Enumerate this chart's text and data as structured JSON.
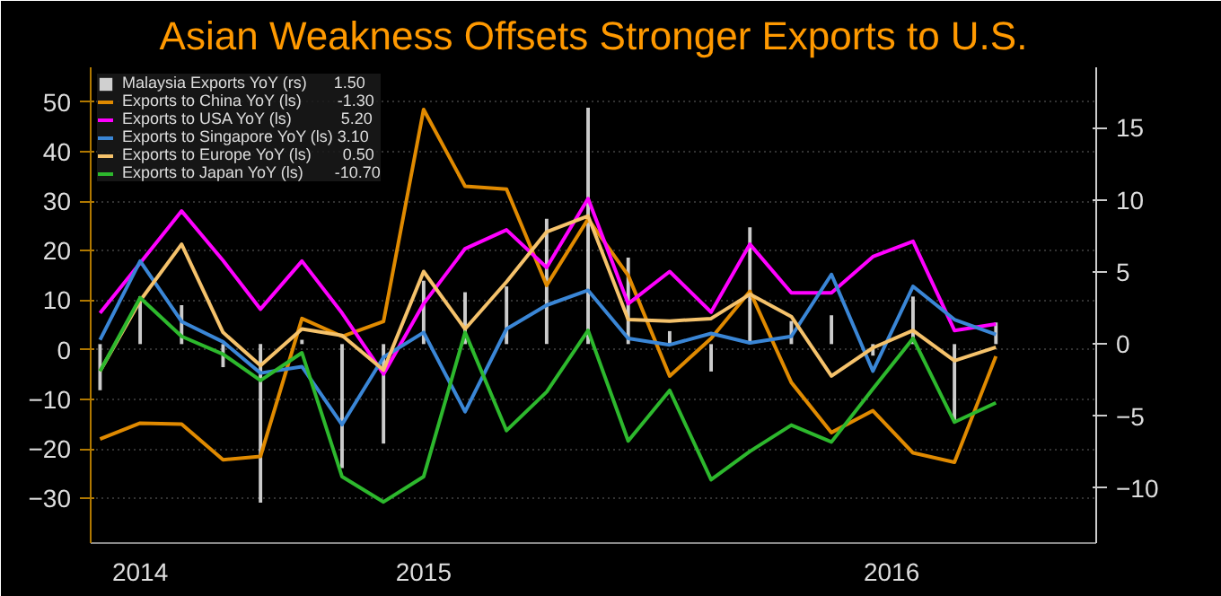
{
  "chart_data": {
    "type": "line",
    "title": "Asian Weakness Offsets Stronger Exports to U.S.",
    "x": [
      "2014-11",
      "2014-12",
      "2015-01",
      "2015-02",
      "2015-03",
      "2015-04",
      "2015-05",
      "2015-06",
      "2015-07",
      "2015-08",
      "2015-09",
      "2015-10",
      "2015-11",
      "2015-12",
      "2016-01",
      "2016-02",
      "2016-03",
      "2016-04",
      "2016-05",
      "2016-06",
      "2016-07",
      "2016-08",
      "2016-09"
    ],
    "series": [
      {
        "name": "Malaysia Exports YoY (rs)      1.50",
        "type": "bar",
        "axis": "y2",
        "color": "#ffffff",
        "values": [
          -3.2,
          3.3,
          2.7,
          -1.6,
          -11.0,
          0.3,
          -8.6,
          -6.9,
          4.4,
          3.6,
          4.0,
          8.7,
          16.4,
          6.0,
          0.9,
          -1.9,
          8.1,
          1.6,
          2.0,
          -0.8,
          3.3,
          -5.4,
          1.5
        ]
      },
      {
        "name": "Exports to China YoY (ls)        -1.30",
        "color": "#e08a00",
        "values": [
          -18,
          -14.8,
          -15,
          -22.2,
          -21.5,
          6.3,
          2.7,
          5.7,
          48.5,
          33,
          32.4,
          13,
          26.4,
          15,
          -5.3,
          2.3,
          11.8,
          -6.6,
          -16.7,
          -12.3,
          -20.8,
          -22.7,
          -1.3
        ]
      },
      {
        "name": "Exports to USA YoY (ls)           5.20",
        "color": "#ff00ff",
        "values": [
          7.4,
          17.5,
          28,
          18,
          8.2,
          17.9,
          7.4,
          -4.9,
          9.3,
          20.4,
          24.2,
          16.6,
          30.5,
          9.3,
          15.8,
          7.6,
          21.3,
          11.5,
          11.5,
          18.8,
          21.9,
          3.9,
          5.2
        ]
      },
      {
        "name": "Exports to Singapore YoY (ls) 3.10",
        "color": "#3a86d6",
        "values": [
          2,
          17.9,
          5.7,
          1.6,
          -4.7,
          -3.4,
          -15.1,
          -1.5,
          3.5,
          -12.5,
          4.2,
          9,
          12,
          2.3,
          1,
          3.3,
          1.4,
          2.7,
          15.2,
          -4.3,
          12.8,
          6.1,
          3.1
        ]
      },
      {
        "name": "Exports to Europe YoY (ls)       0.50",
        "color": "#f5c26b",
        "values": [
          -4.3,
          9.9,
          21.3,
          3.5,
          -3.2,
          4.2,
          2.9,
          -4.1,
          15.8,
          4.2,
          13.7,
          23.8,
          27,
          6.1,
          5.8,
          6.3,
          11.2,
          6.7,
          -5.3,
          0.4,
          3.9,
          -2.2,
          0.5
        ]
      },
      {
        "name": "Exports to Japan YoY (ls)       -10.70",
        "color": "#2db82d",
        "values": [
          -4.3,
          10.5,
          2.7,
          -0.9,
          -6.2,
          -0.6,
          -25.6,
          -30.7,
          -25.6,
          3.5,
          -16.3,
          -8.5,
          3.9,
          -18.4,
          -8.2,
          -26.2,
          -20.5,
          -15.2,
          -18.6,
          -7.9,
          2.3,
          -14.6,
          -10.7
        ]
      }
    ],
    "xlim": [
      "2014-10-25",
      "2016-11-15"
    ],
    "xticks": [
      {
        "value": "2014-12-01",
        "label": "2014"
      },
      {
        "value": "2015-07-01",
        "label": "2015"
      },
      {
        "value": "2016-06-15",
        "label": "2016"
      }
    ],
    "ylim": [
      -39,
      57
    ],
    "yticks": [
      -30,
      -20,
      -10,
      0,
      10,
      20,
      30,
      40,
      50
    ],
    "y2lim": [
      -13.8,
      19.2
    ],
    "y2ticks": [
      -10,
      -5,
      0,
      5,
      10,
      15
    ],
    "grid": "y",
    "legend": "top left"
  }
}
